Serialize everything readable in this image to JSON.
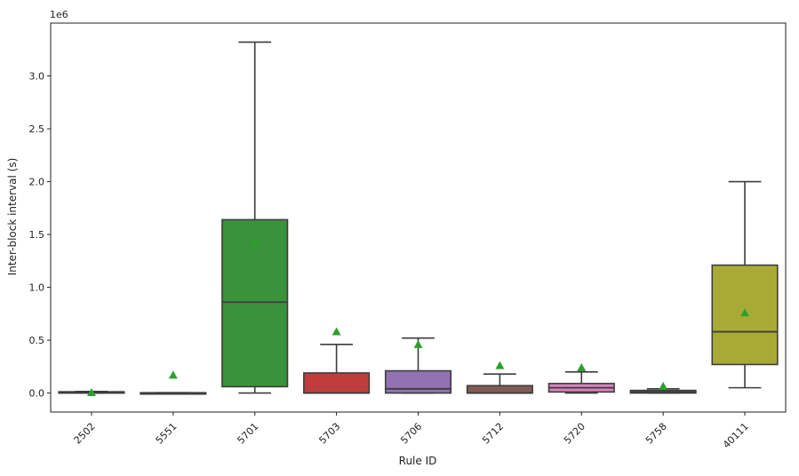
{
  "chart_data": {
    "type": "boxplot",
    "xlabel": "Rule ID",
    "ylabel": "Inter-block interval (s)",
    "y_offset_label": "1e6",
    "ylim": [
      -0.18,
      3.5
    ],
    "y_ticks": [
      0.0,
      0.5,
      1.0,
      1.5,
      2.0,
      2.5,
      3.0
    ],
    "y_tick_labels": [
      "0.0",
      "0.5",
      "1.0",
      "1.5",
      "2.0",
      "2.5",
      "3.0"
    ],
    "grid": false,
    "legend": "none",
    "mean_marker_color": "#2ca02c",
    "median_line_color": "#3d3d3d",
    "categories": [
      "2502",
      "5551",
      "5701",
      "5703",
      "5706",
      "5712",
      "5720",
      "5758",
      "40111"
    ],
    "boxes": [
      {
        "category": "2502",
        "color": "#3274a1",
        "whisker_low": 0.0,
        "q1": 0.0,
        "median": 0.005,
        "q3": 0.012,
        "whisker_high": 0.015,
        "mean": 0.005
      },
      {
        "category": "5551",
        "color": "#e1812c",
        "whisker_low": 0.0,
        "q1": 0.0,
        "median": 0.0,
        "q3": 0.003,
        "whisker_high": 0.003,
        "mean": 0.17
      },
      {
        "category": "5701",
        "color": "#3a923a",
        "whisker_low": 0.0,
        "q1": 0.06,
        "median": 0.86,
        "q3": 1.64,
        "whisker_high": 3.32,
        "mean": 1.42
      },
      {
        "category": "5703",
        "color": "#c03d3e",
        "whisker_low": 0.0,
        "q1": 0.0,
        "median": 0.0,
        "q3": 0.19,
        "whisker_high": 0.46,
        "mean": 0.58
      },
      {
        "category": "5706",
        "color": "#9372b2",
        "whisker_low": 0.0,
        "q1": 0.0,
        "median": 0.04,
        "q3": 0.21,
        "whisker_high": 0.52,
        "mean": 0.46
      },
      {
        "category": "5712",
        "color": "#845b53",
        "whisker_low": 0.0,
        "q1": 0.0,
        "median": 0.0,
        "q3": 0.07,
        "whisker_high": 0.18,
        "mean": 0.26
      },
      {
        "category": "5720",
        "color": "#d684bd",
        "whisker_low": 0.0,
        "q1": 0.01,
        "median": 0.05,
        "q3": 0.09,
        "whisker_high": 0.2,
        "mean": 0.24
      },
      {
        "category": "5758",
        "color": "#7f7f7f",
        "whisker_low": 0.0,
        "q1": 0.0,
        "median": 0.01,
        "q3": 0.025,
        "whisker_high": 0.04,
        "mean": 0.065
      },
      {
        "category": "40111",
        "color": "#a9aa35",
        "whisker_low": 0.05,
        "q1": 0.27,
        "median": 0.58,
        "q3": 1.21,
        "whisker_high": 2.0,
        "mean": 0.76
      }
    ]
  }
}
